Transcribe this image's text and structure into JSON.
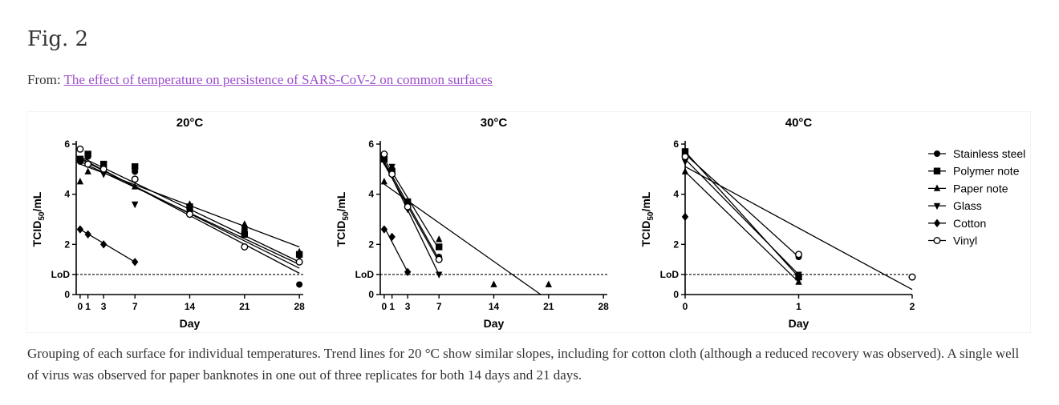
{
  "figure_label": "Fig. 2",
  "source": {
    "prefix": "From: ",
    "link_text": "The effect of temperature on persistence of SARS-CoV-2 on common surfaces"
  },
  "caption": "Grouping of each surface for individual temperatures. Trend lines for 20 °C show similar slopes, including for cotton cloth (although a reduced recovery was observed). A single well of virus was observed for paper banknotes in one out of three replicates for both 14 days and 21 days.",
  "legend": {
    "items": [
      {
        "label": "Stainless steel",
        "marker": "circle"
      },
      {
        "label": "Polymer note",
        "marker": "square"
      },
      {
        "label": "Paper note",
        "marker": "triangle-up"
      },
      {
        "label": "Glass",
        "marker": "triangle-down"
      },
      {
        "label": "Cotton",
        "marker": "diamond"
      },
      {
        "label": "Vinyl",
        "marker": "circle-open"
      }
    ]
  },
  "chart_data": [
    {
      "type": "scatter",
      "title": "20°C",
      "xlabel": "Day",
      "ylabel": "TCID50/mL",
      "xlim": [
        -0.5,
        28.5
      ],
      "ylim": [
        0,
        6
      ],
      "x_ticks": [
        0,
        1,
        3,
        7,
        14,
        21,
        28
      ],
      "y_ticks": [
        0,
        2,
        4,
        6
      ],
      "lod": {
        "label": "LoD",
        "value": 0.8
      },
      "series": [
        {
          "name": "Stainless steel",
          "marker": "circle",
          "points": [
            [
              0,
              5.3
            ],
            [
              1,
              5.5
            ],
            [
              3,
              5.1
            ],
            [
              7,
              4.9
            ],
            [
              14,
              3.3
            ],
            [
              21,
              2.6
            ],
            [
              28,
              0.4
            ]
          ],
          "trend": [
            [
              0,
              5.45
            ],
            [
              28,
              0.85
            ]
          ]
        },
        {
          "name": "Polymer note",
          "marker": "square",
          "points": [
            [
              0,
              5.4
            ],
            [
              1,
              5.6
            ],
            [
              3,
              5.2
            ],
            [
              7,
              5.1
            ],
            [
              14,
              3.5
            ],
            [
              21,
              2.4
            ],
            [
              28,
              1.6
            ]
          ],
          "trend": [
            [
              0,
              5.5
            ],
            [
              28,
              1.3
            ]
          ]
        },
        {
          "name": "Paper note",
          "marker": "triangle-up",
          "points": [
            [
              0,
              4.5
            ],
            [
              1,
              4.9
            ],
            [
              3,
              5.0
            ],
            [
              7,
              4.3
            ],
            [
              14,
              3.6
            ],
            [
              21,
              2.8
            ],
            [
              28,
              1.7
            ]
          ],
          "trend": [
            [
              0,
              5.2
            ],
            [
              28,
              1.9
            ]
          ]
        },
        {
          "name": "Glass",
          "marker": "triangle-down",
          "points": [
            [
              0,
              5.4
            ],
            [
              1,
              5.2
            ],
            [
              3,
              4.8
            ],
            [
              7,
              3.6
            ],
            [
              14,
              3.2
            ],
            [
              21,
              2.6
            ],
            [
              28,
              1.5
            ]
          ],
          "trend": [
            [
              0,
              5.3
            ],
            [
              28,
              1.2
            ]
          ]
        },
        {
          "name": "Cotton",
          "marker": "diamond",
          "points": [
            [
              0,
              2.6
            ],
            [
              1,
              2.4
            ],
            [
              3,
              2.0
            ],
            [
              7,
              1.3
            ]
          ],
          "trend": [
            [
              0,
              2.6
            ],
            [
              7,
              1.3
            ]
          ]
        },
        {
          "name": "Vinyl",
          "marker": "circle-open",
          "points": [
            [
              0,
              5.8
            ],
            [
              1,
              5.2
            ],
            [
              3,
              5.0
            ],
            [
              7,
              4.6
            ],
            [
              14,
              3.2
            ],
            [
              21,
              1.9
            ],
            [
              28,
              1.3
            ]
          ],
          "trend": [
            [
              0,
              5.4
            ],
            [
              28,
              1.05
            ]
          ]
        }
      ]
    },
    {
      "type": "scatter",
      "title": "30°C",
      "xlabel": "Day",
      "ylabel": "TCID50/mL",
      "xlim": [
        -0.5,
        28.5
      ],
      "ylim": [
        0,
        6
      ],
      "x_ticks": [
        0,
        1,
        3,
        7,
        14,
        21,
        28
      ],
      "y_ticks": [
        0,
        2,
        4,
        6
      ],
      "lod": {
        "label": "LoD",
        "value": 0.8
      },
      "series": [
        {
          "name": "Stainless steel",
          "marker": "circle",
          "points": [
            [
              0,
              5.5
            ],
            [
              1,
              5.0
            ],
            [
              3,
              3.6
            ],
            [
              7,
              1.5
            ]
          ],
          "trend": [
            [
              0,
              5.3
            ],
            [
              7,
              1.4
            ]
          ]
        },
        {
          "name": "Polymer note",
          "marker": "square",
          "points": [
            [
              0,
              5.4
            ],
            [
              1,
              4.9
            ],
            [
              3,
              3.7
            ],
            [
              7,
              1.9
            ]
          ],
          "trend": [
            [
              0,
              5.4
            ],
            [
              7,
              1.8
            ]
          ]
        },
        {
          "name": "Paper note",
          "marker": "triangle-up",
          "points": [
            [
              0,
              4.5
            ],
            [
              1,
              5.0
            ],
            [
              3,
              3.6
            ],
            [
              7,
              2.2
            ],
            [
              14,
              0.4
            ],
            [
              21,
              0.4
            ]
          ],
          "trend": [
            [
              0,
              4.4
            ],
            [
              20,
              0
            ]
          ]
        },
        {
          "name": "Glass",
          "marker": "triangle-down",
          "points": [
            [
              0,
              5.3
            ],
            [
              1,
              5.1
            ],
            [
              3,
              3.4
            ],
            [
              7,
              0.8
            ]
          ],
          "trend": [
            [
              0,
              5.3
            ],
            [
              7,
              0.8
            ]
          ]
        },
        {
          "name": "Cotton",
          "marker": "diamond",
          "points": [
            [
              0,
              2.6
            ],
            [
              1,
              2.3
            ],
            [
              3,
              0.9
            ]
          ],
          "trend": [
            [
              0,
              2.7
            ],
            [
              3,
              0.9
            ]
          ]
        },
        {
          "name": "Vinyl",
          "marker": "circle-open",
          "points": [
            [
              0,
              5.6
            ],
            [
              1,
              4.8
            ],
            [
              3,
              3.5
            ],
            [
              7,
              1.4
            ]
          ],
          "trend": [
            [
              0,
              5.2
            ],
            [
              7,
              1.3
            ]
          ]
        }
      ]
    },
    {
      "type": "scatter",
      "title": "40°C",
      "xlabel": "Day",
      "ylabel": "TCID50/mL",
      "xlim": [
        0,
        2
      ],
      "ylim": [
        0,
        6
      ],
      "x_ticks": [
        0,
        1,
        2
      ],
      "y_ticks": [
        0,
        2,
        4,
        6
      ],
      "lod": {
        "label": "LoD",
        "value": 0.8
      },
      "series": [
        {
          "name": "Stainless steel",
          "marker": "circle",
          "points": [
            [
              0,
              5.7
            ],
            [
              1,
              1.5
            ]
          ],
          "trend": [
            [
              0,
              5.6
            ],
            [
              1,
              1.5
            ]
          ]
        },
        {
          "name": "Polymer note",
          "marker": "square",
          "points": [
            [
              0,
              5.7
            ],
            [
              1,
              0.7
            ]
          ],
          "trend": [
            [
              0,
              5.7
            ],
            [
              1,
              0.7
            ]
          ]
        },
        {
          "name": "Paper note",
          "marker": "triangle-up",
          "points": [
            [
              0,
              4.9
            ],
            [
              1,
              0.5
            ]
          ],
          "trend": [
            [
              0,
              4.9
            ],
            [
              1,
              0.5
            ]
          ]
        },
        {
          "name": "Glass",
          "marker": "triangle-down",
          "points": [
            [
              0,
              5.3
            ],
            [
              1,
              0.8
            ]
          ],
          "trend": [
            [
              0,
              5.4
            ],
            [
              1,
              0.8
            ]
          ]
        },
        {
          "name": "Cotton",
          "marker": "diamond",
          "points": [
            [
              0,
              3.1
            ]
          ],
          "trend": []
        },
        {
          "name": "Vinyl",
          "marker": "circle-open",
          "points": [
            [
              0,
              5.5
            ],
            [
              1,
              1.6
            ],
            [
              2,
              0.7
            ]
          ],
          "trend": [
            [
              0,
              5.1
            ],
            [
              2,
              0.2
            ]
          ]
        }
      ]
    }
  ]
}
